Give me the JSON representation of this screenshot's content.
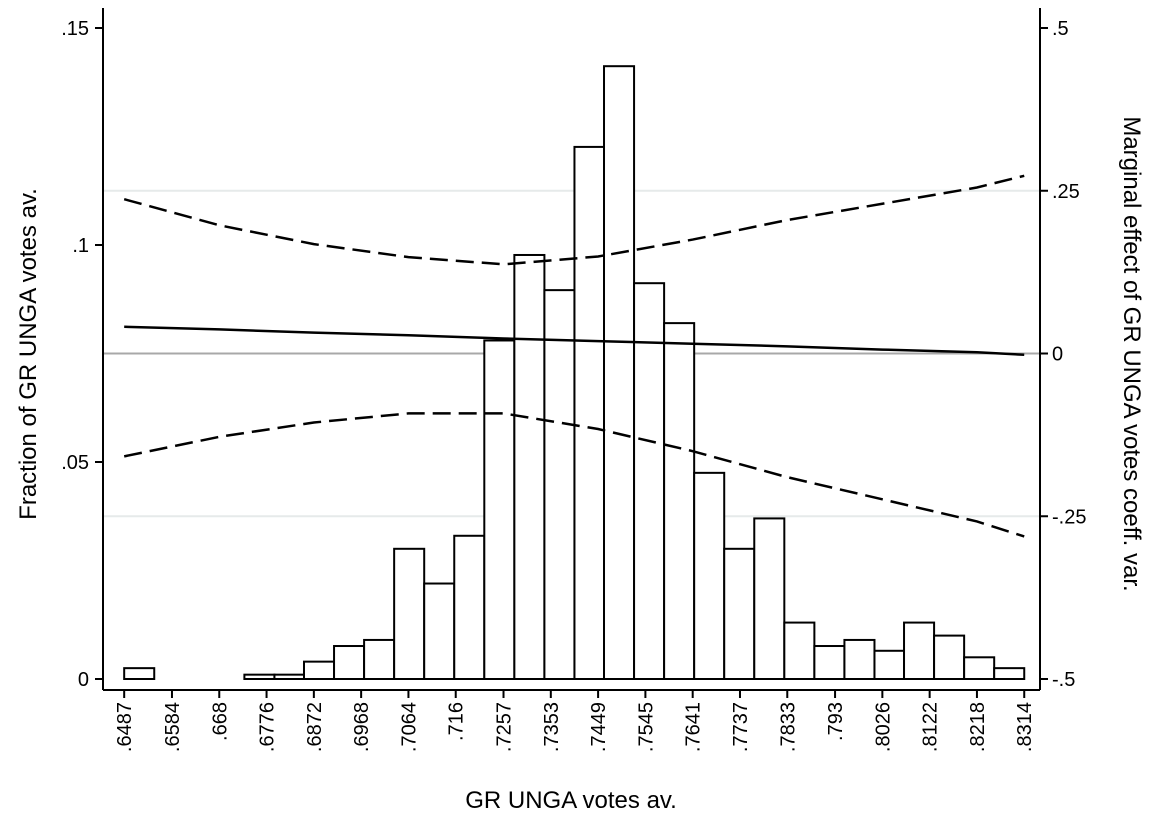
{
  "chart_data": {
    "type": "histogram",
    "xlabel": "GR UNGA votes av.",
    "ylabel": "Fraction of GR UNGA votes av.",
    "y2label": "Marginal effect of GR UNGA votes coeff. var.",
    "bins": [
      0.6487,
      0.6548,
      0.6609,
      0.667,
      0.6731,
      0.6792,
      0.6852,
      0.6913,
      0.6974,
      0.7035,
      0.7096,
      0.7157,
      0.7218,
      0.7279,
      0.734,
      0.7401,
      0.7461,
      0.7522,
      0.7583,
      0.7644,
      0.7705,
      0.7766,
      0.7827,
      0.7888,
      0.7949,
      0.801,
      0.807,
      0.8131,
      0.8192,
      0.8253,
      0.8314
    ],
    "values": [
      0.0025,
      0,
      0,
      0,
      0.001,
      0.001,
      0.004,
      0.0076,
      0.009,
      0.03,
      0.022,
      0.033,
      0.078,
      0.0977,
      0.0896,
      0.1226,
      0.1412,
      0.0912,
      0.082,
      0.0475,
      0.03,
      0.037,
      0.013,
      0.0076,
      0.009,
      0.0065,
      0.013,
      0.01,
      0.005,
      0.0025
    ],
    "color": "#ffffff",
    "edgecolor": "#000000",
    "series": [
      {
        "color": "#000000",
        "dash": false,
        "axis": "y2",
        "x": [
          0.6487,
          0.668,
          0.6872,
          0.7064,
          0.7257,
          0.7449,
          0.7641,
          0.7833,
          0.8026,
          0.8218,
          0.8314
        ],
        "values": [
          0.041,
          0.037,
          0.032,
          0.028,
          0.023,
          0.019,
          0.015,
          0.011,
          0.006,
          0.002,
          -0.002
        ]
      },
      {
        "color": "#000000",
        "dash": true,
        "axis": "y2",
        "x": [
          0.6487,
          0.668,
          0.6872,
          0.7064,
          0.7257,
          0.7449,
          0.7641,
          0.7833,
          0.8026,
          0.8218,
          0.8314
        ],
        "values": [
          0.237,
          0.197,
          0.168,
          0.148,
          0.137,
          0.149,
          0.175,
          0.205,
          0.23,
          0.255,
          0.273
        ]
      },
      {
        "color": "#000000",
        "dash": true,
        "axis": "y2",
        "x": [
          0.6487,
          0.668,
          0.6872,
          0.7064,
          0.7257,
          0.7449,
          0.7641,
          0.7833,
          0.8026,
          0.8218,
          0.8314
        ],
        "values": [
          -0.158,
          -0.128,
          -0.106,
          -0.092,
          -0.092,
          -0.116,
          -0.15,
          -0.19,
          -0.224,
          -0.258,
          -0.281
        ]
      }
    ],
    "xlim": [
      0.6444,
      0.8346
    ],
    "xticks": [
      {
        "value": 0.6487,
        "label": ".6487"
      },
      {
        "value": 0.6584,
        "label": ".6584"
      },
      {
        "value": 0.668,
        "label": ".668"
      },
      {
        "value": 0.6776,
        "label": ".6776"
      },
      {
        "value": 0.6872,
        "label": ".6872"
      },
      {
        "value": 0.6968,
        "label": ".6968"
      },
      {
        "value": 0.7064,
        "label": ".7064"
      },
      {
        "value": 0.716,
        "label": ".716"
      },
      {
        "value": 0.7257,
        "label": ".7257"
      },
      {
        "value": 0.7353,
        "label": ".7353"
      },
      {
        "value": 0.7449,
        "label": ".7449"
      },
      {
        "value": 0.7545,
        "label": ".7545"
      },
      {
        "value": 0.7641,
        "label": ".7641"
      },
      {
        "value": 0.7737,
        "label": ".7737"
      },
      {
        "value": 0.7833,
        "label": ".7833"
      },
      {
        "value": 0.793,
        "label": ".793"
      },
      {
        "value": 0.8026,
        "label": ".8026"
      },
      {
        "value": 0.8122,
        "label": ".8122"
      },
      {
        "value": 0.8218,
        "label": ".8218"
      },
      {
        "value": 0.8314,
        "label": ".8314"
      }
    ],
    "ylim": [
      0,
      0.15
    ],
    "yticks": [
      0,
      {
        "value": 0.05,
        "label": ".05"
      },
      {
        "value": 0.1,
        "label": ".1"
      },
      {
        "value": 0.15,
        "label": ".15"
      }
    ],
    "y2lim": [
      -0.5,
      0.5
    ],
    "y2ticks": [
      {
        "value": -0.5,
        "label": "-.5"
      },
      {
        "value": -0.25,
        "label": "-.25"
      },
      0,
      {
        "value": 0.25,
        "label": ".25"
      },
      {
        "value": 0.5,
        "label": ".5"
      }
    ],
    "grid": true
  }
}
